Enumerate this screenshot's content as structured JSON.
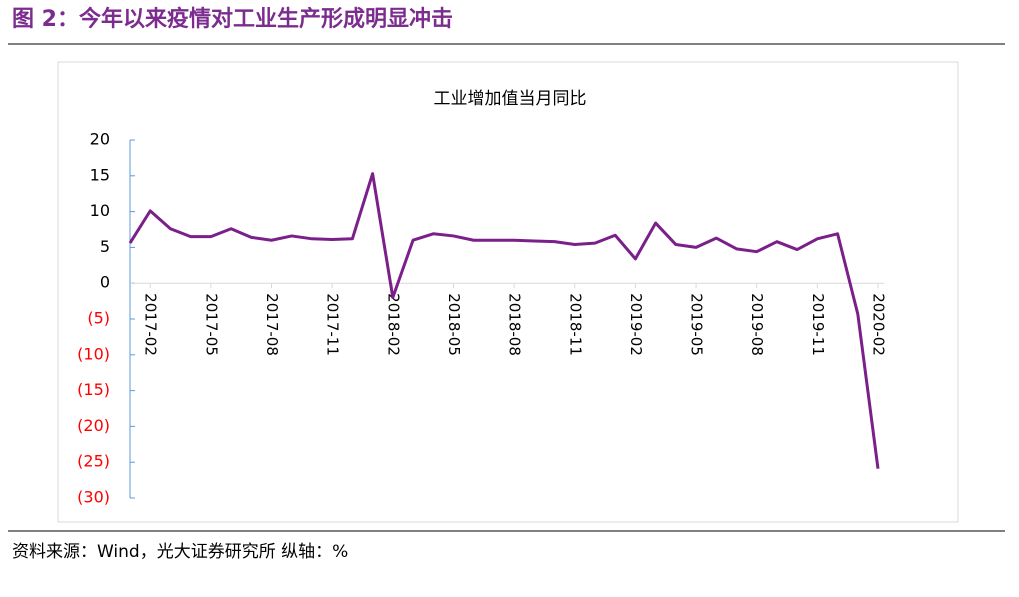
{
  "header": {
    "title": "图 2：今年以来疫情对工业生产形成明显冲击"
  },
  "chart_data": {
    "type": "line",
    "title": "工业增加值当月同比",
    "categories": [
      null,
      "2017-02",
      null,
      null,
      "2017-05",
      null,
      null,
      "2017-08",
      null,
      null,
      "2017-11",
      null,
      null,
      "2018-02",
      null,
      null,
      "2018-05",
      null,
      null,
      "2018-08",
      null,
      null,
      "2018-11",
      null,
      null,
      "2019-02",
      null,
      null,
      "2019-05",
      null,
      null,
      "2019-08",
      null,
      null,
      "2019-11",
      null,
      null,
      "2020-02"
    ],
    "series": [
      {
        "name": "工业增加值当月同比",
        "color": "#7b1f8a",
        "values": [
          5.6,
          10.1,
          7.6,
          6.5,
          6.5,
          7.6,
          6.4,
          6.0,
          6.6,
          6.2,
          6.1,
          6.2,
          15.3,
          -2.0,
          6.0,
          6.9,
          6.6,
          6.0,
          6.0,
          6.0,
          5.9,
          5.8,
          5.4,
          5.6,
          6.7,
          3.4,
          8.4,
          5.4,
          5.0,
          6.3,
          4.8,
          4.4,
          5.8,
          4.7,
          6.2,
          6.9,
          -4.3,
          -25.9
        ]
      }
    ],
    "ylim": [
      -30,
      20
    ],
    "yticks": [
      20,
      15,
      10,
      5,
      0,
      {
        "value": -5,
        "label": "(5)"
      },
      {
        "value": -10,
        "label": "(10)"
      },
      {
        "value": -15,
        "label": "(15)"
      },
      {
        "value": -20,
        "label": "(20)"
      },
      {
        "value": -25,
        "label": "(25)"
      },
      {
        "value": -30,
        "label": "(30)"
      }
    ],
    "negative_tick_color": "#ff0000",
    "axis_color": "#5b9bd5"
  },
  "footer": {
    "source": "资料来源：Wind，光大证券研究所 纵轴：%"
  }
}
